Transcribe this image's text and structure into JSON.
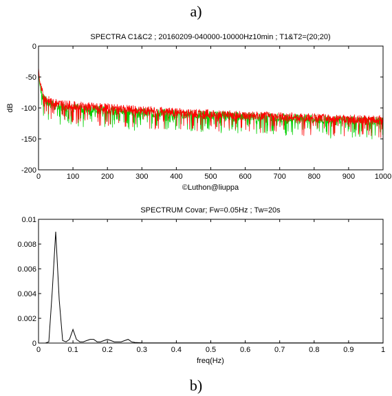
{
  "panel_labels": {
    "top": "a)",
    "bottom": "b)"
  },
  "chart_data": [
    {
      "type": "line",
      "title": "SPECTRA C1&C2 ; 20160209-040000-10000Hz10min ; T1&T2=(20;20)",
      "xlabel": "©Luthon@liuppa",
      "ylabel": "dB",
      "xlim": [
        0,
        1000
      ],
      "ylim": [
        -200,
        0
      ],
      "xticks": [
        0,
        100,
        200,
        300,
        400,
        500,
        600,
        700,
        800,
        900,
        1000
      ],
      "yticks": [
        0,
        -50,
        -100,
        -150,
        -200
      ],
      "grid": false,
      "series": [
        {
          "color": "#00d000",
          "x": [
            0,
            3,
            8,
            15,
            30,
            50,
            100,
            200,
            300,
            400,
            500,
            600,
            700,
            800,
            900,
            1000
          ],
          "values": [
            -40,
            -60,
            -75,
            -85,
            -92,
            -97,
            -100,
            -104,
            -107,
            -110,
            -112,
            -114,
            -116,
            -118,
            -120,
            -122
          ]
        },
        {
          "color": "#ff0000",
          "x": [
            0,
            3,
            8,
            15,
            30,
            50,
            100,
            200,
            300,
            400,
            500,
            600,
            700,
            800,
            900,
            1000
          ],
          "values": [
            -35,
            -55,
            -70,
            -82,
            -88,
            -92,
            -96,
            -100,
            -104,
            -107,
            -110,
            -112,
            -114,
            -116,
            -118,
            -120
          ]
        }
      ]
    },
    {
      "type": "line",
      "title": "SPECTRUM Covar; Fw=0.05Hz ; Tw=20s",
      "xlabel": "freq(Hz)",
      "ylabel": "",
      "xlim": [
        0,
        1
      ],
      "ylim": [
        0,
        0.01
      ],
      "xticks": [
        "0",
        "0.1",
        "0.2",
        "0.3",
        "0.4",
        "0.5",
        "0.6",
        "0.7",
        "0.8",
        "0.9",
        "1"
      ],
      "yticks": [
        "0",
        "0.002",
        "0.004",
        "0.006",
        "0.008",
        "0.01"
      ],
      "grid": false,
      "series": [
        {
          "color": "#000000",
          "x": [
            0,
            0.02,
            0.03,
            0.04,
            0.05,
            0.06,
            0.07,
            0.08,
            0.09,
            0.1,
            0.11,
            0.12,
            0.13,
            0.14,
            0.15,
            0.16,
            0.17,
            0.18,
            0.19,
            0.2,
            0.21,
            0.22,
            0.23,
            0.24,
            0.25,
            0.26,
            0.27,
            0.28,
            0.3,
            0.4,
            0.5,
            0.6,
            0.7,
            0.8,
            0.9,
            1.0
          ],
          "values": [
            0,
            0,
            0.0001,
            0.0042,
            0.009,
            0.0035,
            0.0002,
            0.0001,
            0.0003,
            0.0011,
            0.0003,
            0.0001,
            0.0001,
            0.0002,
            0.0003,
            0.0003,
            0.0001,
            0.0001,
            0.0002,
            0.0003,
            0.0002,
            0.0001,
            0.0001,
            0.0001,
            0.0002,
            0.0003,
            0.0001,
            5e-05,
            2e-05,
            1e-05,
            1e-05,
            1e-05,
            1e-05,
            1e-05,
            1e-05,
            1e-05
          ]
        }
      ]
    }
  ]
}
